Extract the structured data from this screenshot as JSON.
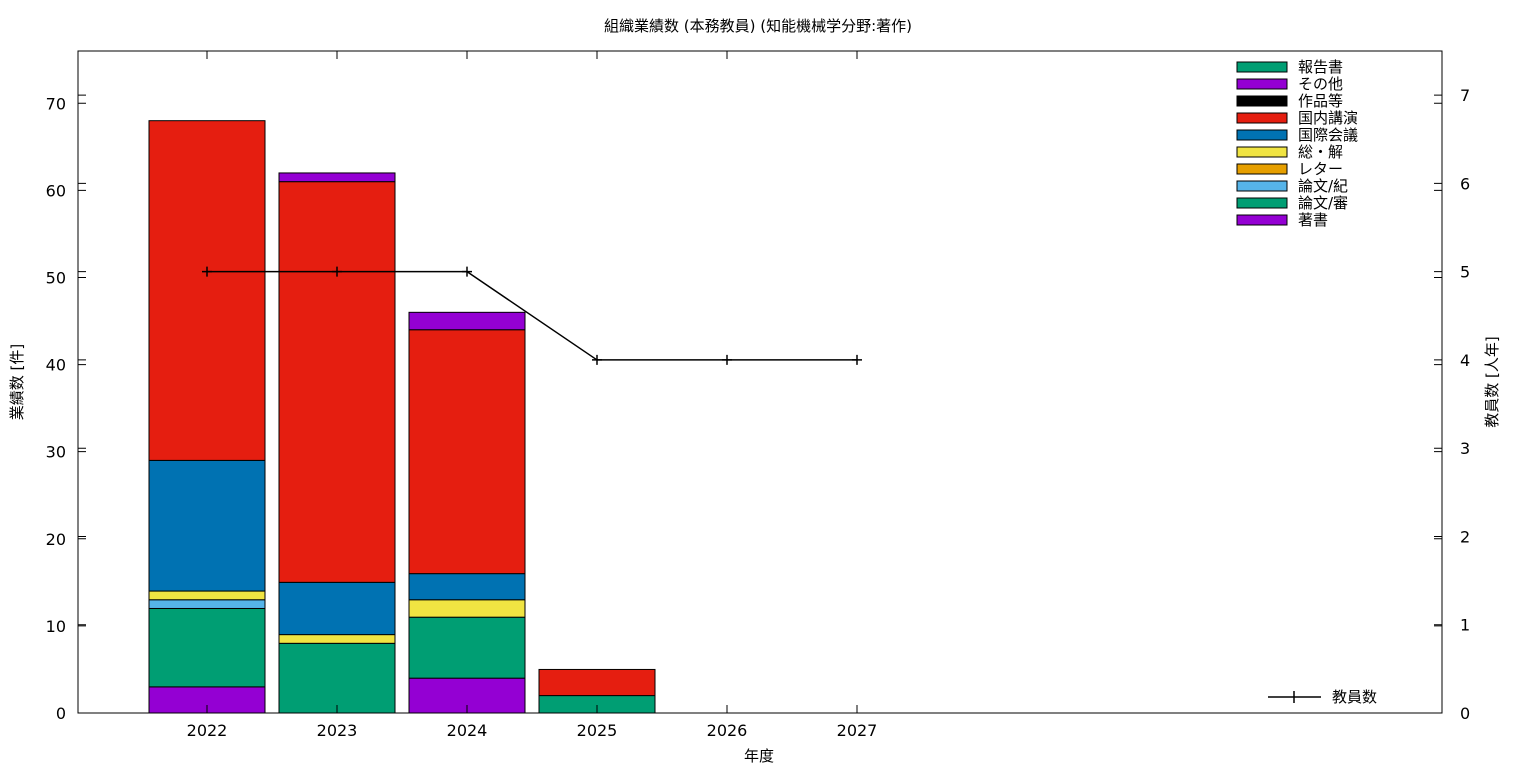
{
  "chart_data": {
    "type": "bar",
    "title": "組織業績数 (本務教員) (知能機械学分野:著作)",
    "xlabel": "年度",
    "ylabel": "業績数 [件]",
    "y2label": "教員数 [人年]",
    "categories": [
      "2022",
      "2023",
      "2024",
      "2025",
      "2026",
      "2027"
    ],
    "ylim": [
      0,
      76
    ],
    "y2lim": [
      0,
      7.5
    ],
    "yticks": [
      0,
      10,
      20,
      30,
      40,
      50,
      60,
      70
    ],
    "y2ticks": [
      0,
      1,
      2,
      3,
      4,
      5,
      6,
      7
    ],
    "grid": false,
    "legend_position": "top-right",
    "series": [
      {
        "name": "著書",
        "color": "#9400d3",
        "values": [
          3,
          0,
          4,
          0,
          0,
          0
        ]
      },
      {
        "name": "論文/審",
        "color": "#009e73",
        "values": [
          9,
          8,
          7,
          2,
          0,
          0
        ]
      },
      {
        "name": "論文/紀",
        "color": "#56b4e9",
        "values": [
          1,
          0,
          0,
          0,
          0,
          0
        ]
      },
      {
        "name": "レター",
        "color": "#e69f00",
        "values": [
          0,
          0,
          0,
          0,
          0,
          0
        ]
      },
      {
        "name": "総・解",
        "color": "#f0e442",
        "values": [
          1,
          1,
          2,
          0,
          0,
          0
        ]
      },
      {
        "name": "国際会議",
        "color": "#0072b2",
        "values": [
          15,
          6,
          3,
          0,
          0,
          0
        ]
      },
      {
        "name": "国内講演",
        "color": "#e51e10",
        "values": [
          39,
          46,
          28,
          3,
          0,
          0
        ]
      },
      {
        "name": "作品等",
        "color": "#000000",
        "values": [
          0,
          0,
          0,
          0,
          0,
          0
        ]
      },
      {
        "name": "その他",
        "color": "#9400d3",
        "values": [
          0,
          1,
          2,
          0,
          0,
          0
        ]
      },
      {
        "name": "報告書",
        "color": "#009e73",
        "values": [
          0,
          0,
          0,
          0,
          0,
          0
        ]
      }
    ],
    "line_series": {
      "name": "教員数",
      "axis": "y2",
      "color": "#000000",
      "values": [
        5,
        5,
        5,
        4,
        4,
        4
      ]
    }
  }
}
